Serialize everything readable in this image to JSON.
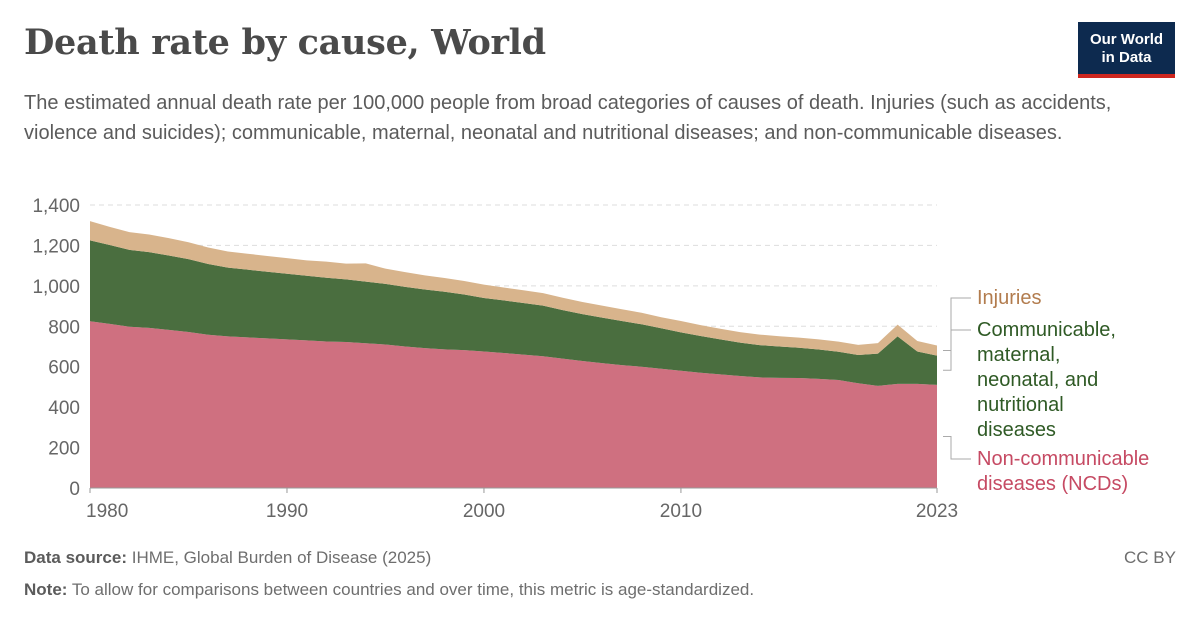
{
  "header": {
    "title": "Death rate by cause, World",
    "subtitle": "The estimated annual death rate per 100,000 people from broad categories of causes of death. Injuries (such as accidents, violence and suicides); communicable, maternal, neonatal and nutritional diseases; and non-communicable diseases."
  },
  "logo": {
    "line1": "Our World",
    "line2": "in Data"
  },
  "footer": {
    "source_label": "Data source:",
    "source_text": "IHME, Global Burden of Disease (2025)",
    "note_label": "Note:",
    "note_text": "To allow for comparisons between countries and over time, this metric is age-standardized.",
    "license": "CC BY"
  },
  "colors": {
    "ncd": "#cf7080",
    "communicable": "#4a6e3f",
    "injuries": "#d8b48c",
    "grid": "#dddddd",
    "axis": "#777777"
  },
  "chart_data": {
    "type": "area",
    "stacked": true,
    "title": "Death rate by cause, World",
    "ylim": [
      0,
      1400
    ],
    "xlim": [
      1980,
      2023
    ],
    "yticks": [
      0,
      200,
      400,
      600,
      800,
      1000,
      1200,
      1400
    ],
    "ytick_labels": [
      "0",
      "200",
      "400",
      "600",
      "800",
      "1,000",
      "1,200",
      "1,400"
    ],
    "xticks": [
      1980,
      1990,
      2000,
      2010,
      2023
    ],
    "xtick_labels": [
      "1980",
      "1990",
      "2000",
      "2010",
      "2023"
    ],
    "grid": true,
    "legend": "right, inline labels",
    "x": [
      1980,
      1981,
      1982,
      1983,
      1984,
      1985,
      1986,
      1987,
      1988,
      1989,
      1990,
      1991,
      1992,
      1993,
      1994,
      1995,
      1996,
      1997,
      1998,
      1999,
      2000,
      2001,
      2002,
      2003,
      2004,
      2005,
      2006,
      2007,
      2008,
      2009,
      2010,
      2011,
      2012,
      2013,
      2014,
      2015,
      2016,
      2017,
      2018,
      2019,
      2020,
      2021,
      2022,
      2023
    ],
    "series": [
      {
        "name": "Non-communicable diseases (NCDs)",
        "label_lines": [
          "Non-communicable",
          "diseases (NCDs)"
        ],
        "color": "#cf7080",
        "values": [
          825,
          812,
          798,
          792,
          782,
          772,
          758,
          750,
          745,
          740,
          735,
          730,
          725,
          722,
          716,
          710,
          700,
          692,
          686,
          682,
          675,
          668,
          660,
          652,
          640,
          628,
          618,
          608,
          600,
          590,
          580,
          570,
          562,
          554,
          547,
          545,
          544,
          540,
          534,
          518,
          505,
          515,
          515,
          510
        ]
      },
      {
        "name": "Communicable, maternal, neonatal, and nutritional diseases",
        "label_lines": [
          "Communicable,",
          "maternal,",
          "neonatal, and",
          "nutritional",
          "diseases"
        ],
        "color": "#4a6e3f",
        "values": [
          400,
          390,
          380,
          375,
          368,
          360,
          350,
          340,
          335,
          330,
          325,
          320,
          315,
          310,
          305,
          300,
          295,
          290,
          285,
          275,
          265,
          260,
          255,
          250,
          240,
          232,
          225,
          218,
          210,
          200,
          190,
          182,
          173,
          165,
          160,
          155,
          150,
          145,
          140,
          140,
          160,
          235,
          160,
          145
        ]
      },
      {
        "name": "Injuries",
        "label_lines": [
          "Injuries"
        ],
        "color": "#d8b48c",
        "values": [
          95,
          90,
          88,
          87,
          86,
          84,
          82,
          80,
          79,
          78,
          77,
          76,
          80,
          78,
          90,
          75,
          73,
          70,
          68,
          67,
          66,
          64,
          63,
          62,
          61,
          60,
          59,
          58,
          57,
          55,
          56,
          54,
          53,
          52,
          52,
          51,
          50,
          50,
          50,
          50,
          52,
          58,
          52,
          50
        ]
      }
    ]
  }
}
